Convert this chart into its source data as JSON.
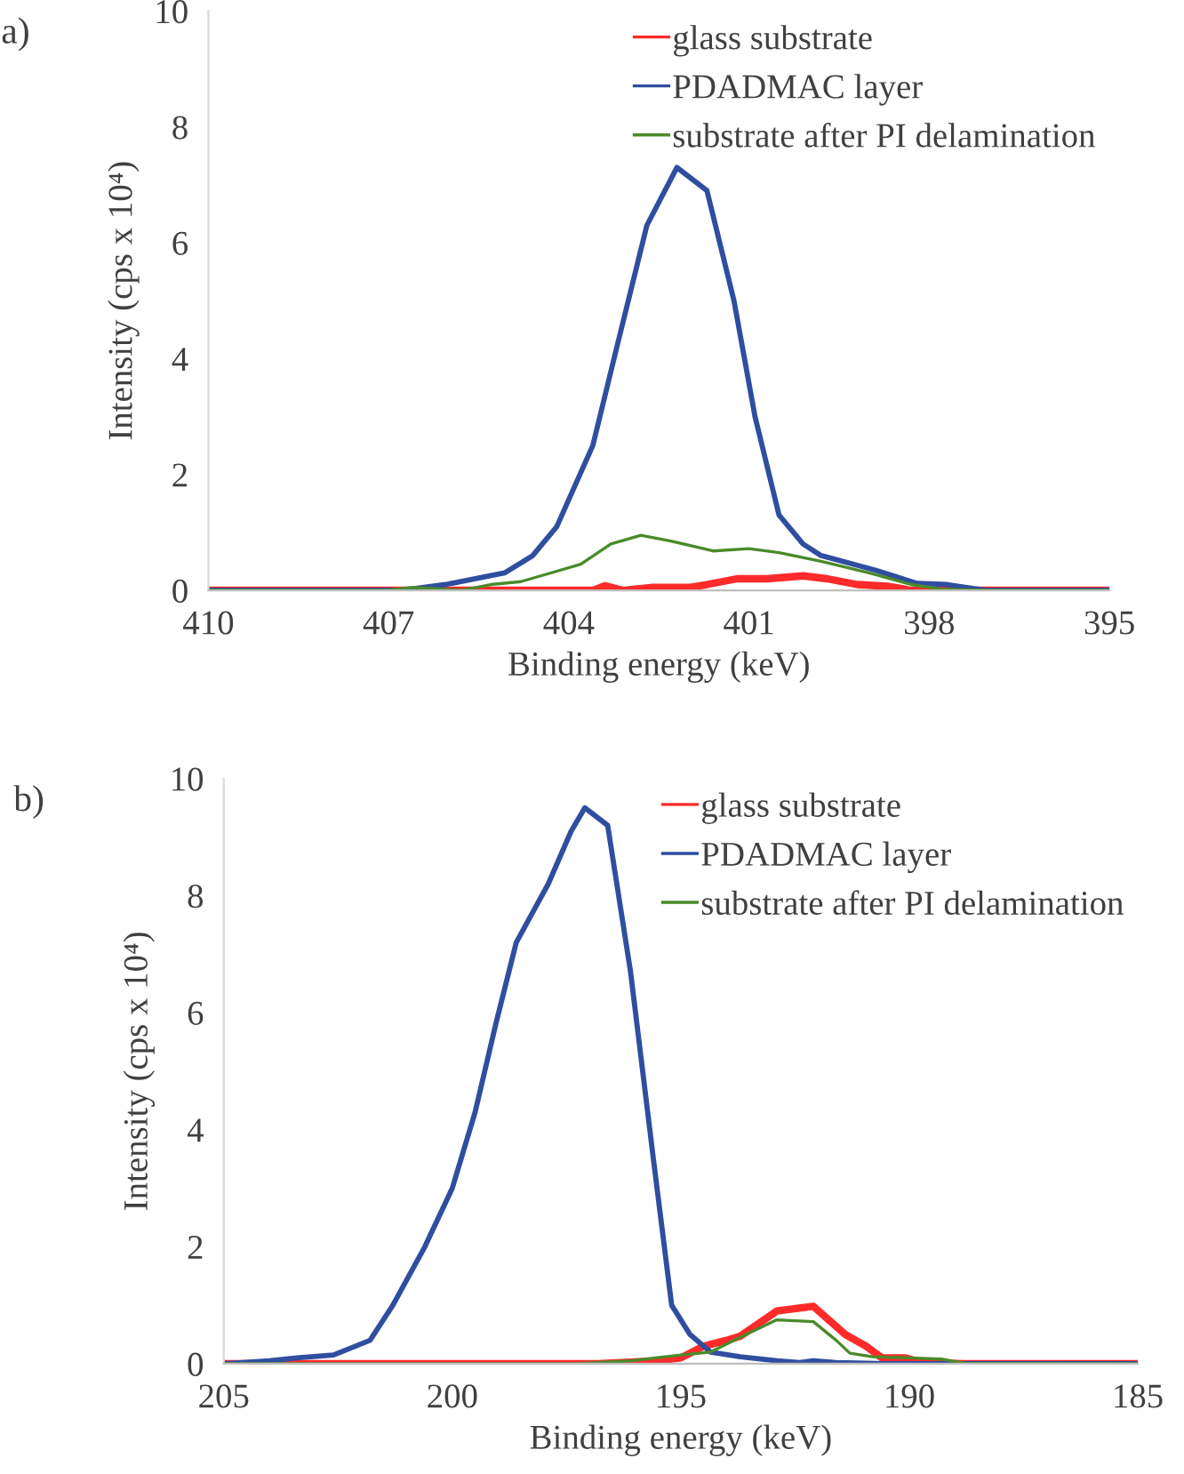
{
  "chart_data": [
    {
      "type": "line",
      "title": "a)",
      "xlabel": "Binding energy (keV)",
      "ylabel": "Intensity (cps x 10⁴)",
      "xlim": [
        410,
        395
      ],
      "xticks": [
        410,
        407,
        404,
        401,
        398,
        395
      ],
      "ylim": [
        0,
        10
      ],
      "yticks": [
        0,
        2,
        4,
        6,
        8,
        10
      ],
      "grid": false,
      "legend": "top right",
      "marker": "none",
      "line_style": "solid",
      "series": [
        {
          "name": "glass substrate",
          "color": "#ff2a2a",
          "x": [
            410,
            403.6,
            403.4,
            403.1,
            402.6,
            402.0,
            401.7,
            401.2,
            400.7,
            400.1,
            399.7,
            399.2,
            398.7,
            398.3,
            395
          ],
          "values": [
            0,
            0,
            0.08,
            0,
            0.05,
            0.05,
            0.1,
            0.2,
            0.2,
            0.25,
            0.2,
            0.1,
            0.07,
            0,
            0
          ]
        },
        {
          "name": "PDADMAC layer",
          "color": "#2f4ea0",
          "x": [
            410,
            406.8,
            406.05,
            405.07,
            404.6,
            404.2,
            403.6,
            403.2,
            402.7,
            402.2,
            401.7,
            401.25,
            400.9,
            400.5,
            400.1,
            399.8,
            398.9,
            398.2,
            397.7,
            397.05,
            395
          ],
          "values": [
            0,
            0,
            0.1,
            0.3,
            0.6,
            1.1,
            2.5,
            4.2,
            6.3,
            7.3,
            6.9,
            5.0,
            3.0,
            1.3,
            0.8,
            0.6,
            0.35,
            0.12,
            0.1,
            0,
            0
          ]
        },
        {
          "name": "substrate after PI delamination",
          "color": "#4a8a2a",
          "x": [
            410,
            407.0,
            406.6,
            406.2,
            405.8,
            405.3,
            404.8,
            404.3,
            403.8,
            403.3,
            402.8,
            402.3,
            401.6,
            401.0,
            400.5,
            399.8,
            399.0,
            398.3,
            397.8,
            397.0,
            395
          ],
          "values": [
            0,
            0,
            0.05,
            0.03,
            0,
            0.1,
            0.15,
            0.3,
            0.45,
            0.8,
            0.95,
            0.85,
            0.68,
            0.72,
            0.65,
            0.5,
            0.3,
            0.1,
            0.02,
            0,
            0
          ]
        }
      ]
    },
    {
      "type": "line",
      "title": "b)",
      "xlabel": "Binding energy (keV)",
      "ylabel": "Intensity (cps x 10⁴)",
      "xlim": [
        205,
        185
      ],
      "xticks": [
        205,
        200,
        195,
        190,
        185
      ],
      "ylim": [
        0,
        10
      ],
      "yticks": [
        0,
        2,
        4,
        6,
        8,
        10
      ],
      "grid": false,
      "legend": "top right",
      "marker": "none",
      "line_style": "solid",
      "series": [
        {
          "name": "glass substrate",
          "color": "#ff2a2a",
          "x": [
            205,
            196.8,
            195.5,
            195,
            194.5,
            194,
            193.7,
            192.9,
            192.1,
            191.4,
            190.95,
            190.6,
            190.1,
            189.7,
            188.8,
            185
          ],
          "values": [
            0,
            0,
            0.05,
            0.1,
            0.3,
            0.4,
            0.47,
            0.9,
            0.98,
            0.5,
            0.3,
            0.1,
            0.1,
            0.02,
            0,
            0
          ]
        },
        {
          "name": "PDADMAC layer",
          "color": "#2f4ea0",
          "x": [
            205,
            204,
            203.4,
            202.6,
            201.8,
            201.3,
            200.6,
            200.0,
            199.5,
            199.05,
            198.6,
            197.9,
            197.4,
            197.1,
            196.6,
            196.1,
            195.6,
            195.2,
            194.8,
            194.35,
            193.7,
            192.9,
            192.4,
            192.1,
            191.6,
            190.5,
            185
          ],
          "values": [
            0,
            0.05,
            0.1,
            0.15,
            0.4,
            1.0,
            2.0,
            3.0,
            4.3,
            5.8,
            7.2,
            8.2,
            9.1,
            9.5,
            9.2,
            6.7,
            3.5,
            1.0,
            0.5,
            0.2,
            0.12,
            0.05,
            0.02,
            0.05,
            0.02,
            0,
            0
          ]
        },
        {
          "name": "substrate after PI delamination",
          "color": "#4a8a2a",
          "x": [
            205,
            197.3,
            196.1,
            195,
            194.35,
            193.7,
            192.9,
            192.1,
            191.6,
            191.3,
            190.8,
            190.0,
            189.3,
            188.8,
            185
          ],
          "values": [
            0,
            0,
            0.05,
            0.15,
            0.2,
            0.45,
            0.75,
            0.72,
            0.4,
            0.18,
            0.12,
            0.1,
            0.08,
            0.01,
            0
          ]
        }
      ]
    }
  ]
}
